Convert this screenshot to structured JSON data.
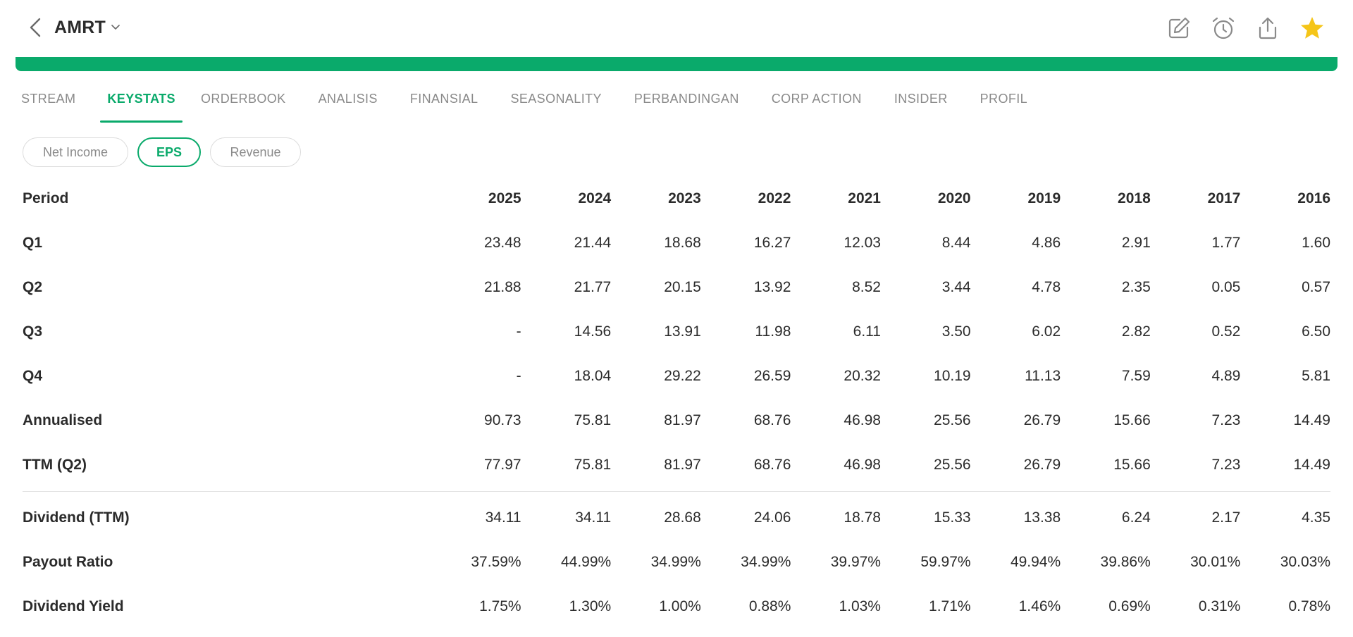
{
  "header": {
    "ticker": "AMRT",
    "icons": [
      "chevron-left-icon",
      "chevron-down-icon",
      "edit-icon",
      "alarm-icon",
      "share-icon",
      "star-icon"
    ],
    "colors": {
      "accent": "#0aaa6b",
      "star": "#f5c518",
      "icon": "#8a8a8a"
    }
  },
  "tabs": [
    {
      "label": "STREAM",
      "active": false
    },
    {
      "label": "KEYSTATS",
      "active": true
    },
    {
      "label": "ORDERBOOK",
      "active": false
    },
    {
      "label": "ANALISIS",
      "active": false
    },
    {
      "label": "FINANSIAL",
      "active": false
    },
    {
      "label": "SEASONALITY",
      "active": false
    },
    {
      "label": "PERBANDINGAN",
      "active": false
    },
    {
      "label": "CORP ACTION",
      "active": false
    },
    {
      "label": "INSIDER",
      "active": false
    },
    {
      "label": "PROFIL",
      "active": false
    }
  ],
  "filters": [
    {
      "label": "Net Income",
      "active": false
    },
    {
      "label": "EPS",
      "active": true
    },
    {
      "label": "Revenue",
      "active": false
    }
  ],
  "table": {
    "period_header": "Period",
    "years": [
      "2025",
      "2024",
      "2023",
      "2022",
      "2021",
      "2020",
      "2019",
      "2018",
      "2017",
      "2016"
    ],
    "rows": [
      {
        "label": "Q1",
        "values": [
          "23.48",
          "21.44",
          "18.68",
          "16.27",
          "12.03",
          "8.44",
          "4.86",
          "2.91",
          "1.77",
          "1.60"
        ]
      },
      {
        "label": "Q2",
        "values": [
          "21.88",
          "21.77",
          "20.15",
          "13.92",
          "8.52",
          "3.44",
          "4.78",
          "2.35",
          "0.05",
          "0.57"
        ]
      },
      {
        "label": "Q3",
        "values": [
          "-",
          "14.56",
          "13.91",
          "11.98",
          "6.11",
          "3.50",
          "6.02",
          "2.82",
          "0.52",
          "6.50"
        ]
      },
      {
        "label": "Q4",
        "values": [
          "-",
          "18.04",
          "29.22",
          "26.59",
          "20.32",
          "10.19",
          "11.13",
          "7.59",
          "4.89",
          "5.81"
        ]
      },
      {
        "label": "Annualised",
        "values": [
          "90.73",
          "75.81",
          "81.97",
          "68.76",
          "46.98",
          "25.56",
          "26.79",
          "15.66",
          "7.23",
          "14.49"
        ]
      },
      {
        "label": "TTM (Q2)",
        "values": [
          "77.97",
          "75.81",
          "81.97",
          "68.76",
          "46.98",
          "25.56",
          "26.79",
          "15.66",
          "7.23",
          "14.49"
        ]
      }
    ],
    "dividend_rows": [
      {
        "label": "Dividend (TTM)",
        "values": [
          "34.11",
          "34.11",
          "28.68",
          "24.06",
          "18.78",
          "15.33",
          "13.38",
          "6.24",
          "2.17",
          "4.35"
        ]
      },
      {
        "label": "Payout Ratio",
        "values": [
          "37.59%",
          "44.99%",
          "34.99%",
          "34.99%",
          "39.97%",
          "59.97%",
          "49.94%",
          "39.86%",
          "30.01%",
          "30.03%"
        ]
      },
      {
        "label": "Dividend Yield",
        "values": [
          "1.75%",
          "1.30%",
          "1.00%",
          "0.88%",
          "1.03%",
          "1.71%",
          "1.46%",
          "0.69%",
          "0.31%",
          "0.78%"
        ]
      }
    ]
  }
}
